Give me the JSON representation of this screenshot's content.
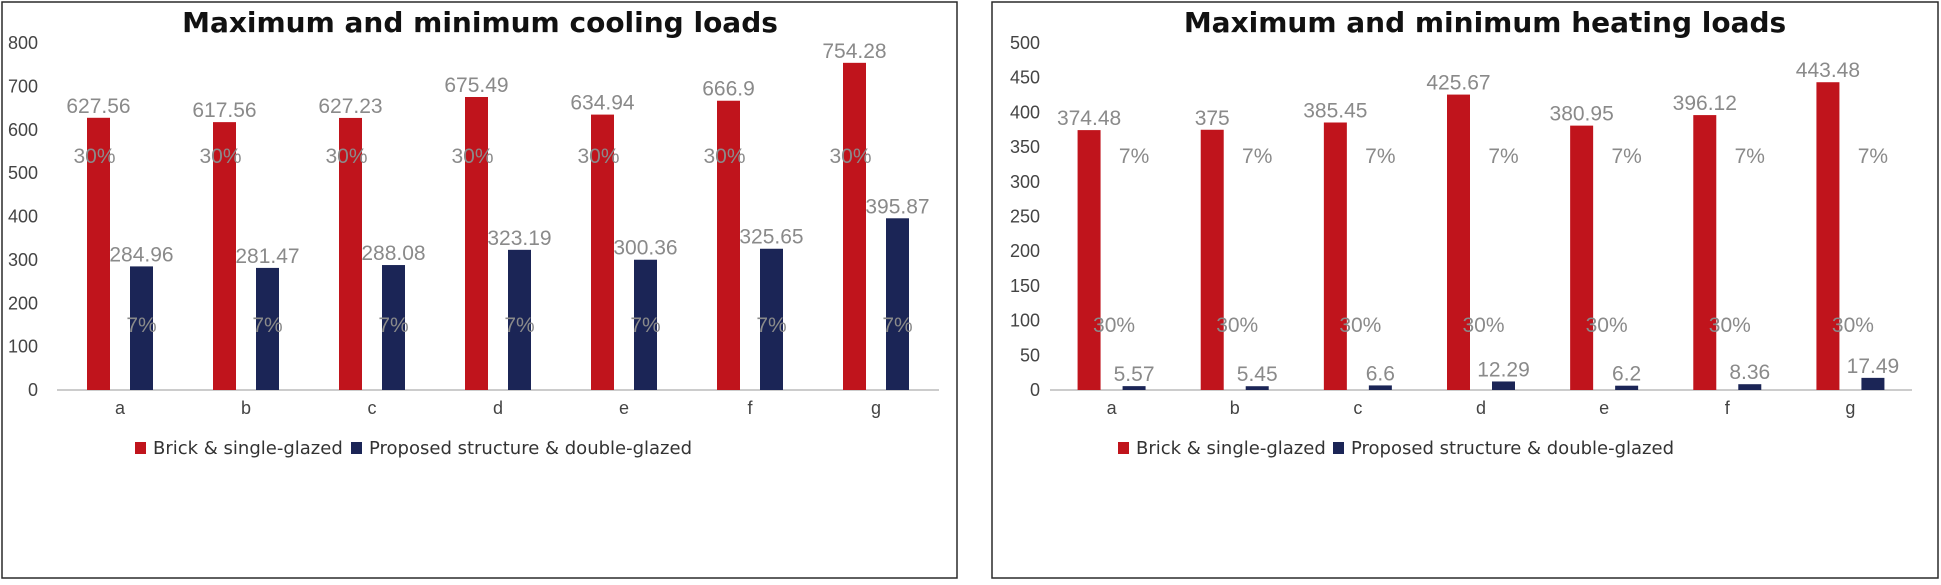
{
  "chart_data": [
    {
      "type": "bar",
      "title": "Maximum and minimum cooling loads",
      "categories": [
        "a",
        "b",
        "c",
        "d",
        "e",
        "f",
        "g"
      ],
      "ylim": [
        0,
        800
      ],
      "yticks": [
        0,
        100,
        200,
        300,
        400,
        500,
        600,
        700,
        800
      ],
      "grid": false,
      "legend_position": "bottom",
      "series": [
        {
          "name": "Brick & single-glazed",
          "color": "#c0141c",
          "values": [
            627.56,
            617.56,
            627.23,
            675.49,
            634.94,
            666.9,
            754.28
          ],
          "value_labels": [
            "627.56",
            "617.56",
            "627.23",
            "675.49",
            "634.94",
            "666.9",
            "754.28"
          ],
          "percent_label": "30%"
        },
        {
          "name": "Proposed structure & double-glazed",
          "color": "#1b2556",
          "values": [
            284.96,
            281.47,
            288.08,
            323.19,
            300.36,
            325.65,
            395.87
          ],
          "value_labels": [
            "284.96",
            "281.47",
            "288.08",
            "323.19",
            "300.36",
            "325.65",
            "395.87"
          ],
          "percent_label": "7%"
        }
      ]
    },
    {
      "type": "bar",
      "title": "Maximum and minimum heating loads",
      "categories": [
        "a",
        "b",
        "c",
        "d",
        "e",
        "f",
        "g"
      ],
      "ylim": [
        0,
        500
      ],
      "yticks": [
        0,
        50,
        100,
        150,
        200,
        250,
        300,
        350,
        400,
        450,
        500
      ],
      "grid": false,
      "legend_position": "bottom",
      "series": [
        {
          "name": "Brick & single-glazed",
          "color": "#c0141c",
          "values": [
            374.48,
            375,
            385.45,
            425.67,
            380.95,
            396.12,
            443.48
          ],
          "value_labels": [
            "374.48",
            "375",
            "385.45",
            "425.67",
            "380.95",
            "396.12",
            "443.48"
          ],
          "percent_label": "7%"
        },
        {
          "name": "Proposed structure & double-glazed",
          "color": "#1b2556",
          "values": [
            5.57,
            5.45,
            6.6,
            12.29,
            6.2,
            8.36,
            17.49
          ],
          "value_labels": [
            "5.57",
            "5.45",
            "6.6",
            "12.29",
            "6.2",
            "8.36",
            "17.49"
          ],
          "percent_label": "30%"
        }
      ]
    }
  ]
}
